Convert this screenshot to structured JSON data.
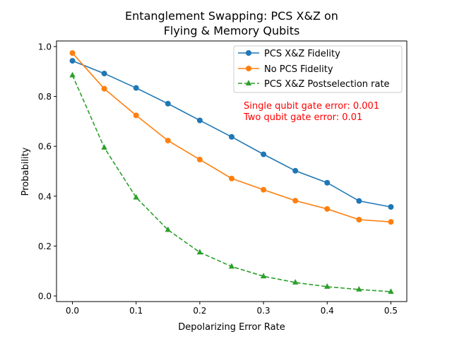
{
  "chart_data": {
    "type": "line",
    "title_lines": [
      "Entanglement Swapping: PCS X&Z on",
      "Flying & Memory Qubits"
    ],
    "xlabel": "Depolarizing Error Rate",
    "ylabel": "Probability",
    "xlim": [
      -0.025,
      0.525
    ],
    "ylim": [
      -0.0225,
      1.0225
    ],
    "x_ticks": [
      0.0,
      0.1,
      0.2,
      0.3,
      0.4,
      0.5
    ],
    "x_tick_labels": [
      "0.0",
      "0.1",
      "0.2",
      "0.3",
      "0.4",
      "0.5"
    ],
    "y_ticks": [
      0.0,
      0.2,
      0.4,
      0.6,
      0.8,
      1.0
    ],
    "y_tick_labels": [
      "0.0",
      "0.2",
      "0.4",
      "0.6",
      "0.8",
      "1.0"
    ],
    "grid": false,
    "legend_position": "top-right",
    "x": [
      0.0,
      0.05,
      0.1,
      0.15,
      0.2,
      0.25,
      0.3,
      0.35,
      0.4,
      0.45,
      0.5
    ],
    "series": [
      {
        "name": "PCS X&Z Fidelity",
        "color": "#1f77b4",
        "line_style": "solid",
        "marker": "circle",
        "values": [
          0.943,
          0.892,
          0.834,
          0.771,
          0.704,
          0.638,
          0.568,
          0.502,
          0.454,
          0.381,
          0.357
        ]
      },
      {
        "name": "No PCS Fidelity",
        "color": "#ff7f0e",
        "line_style": "solid",
        "marker": "circle",
        "values": [
          0.974,
          0.831,
          0.724,
          0.623,
          0.547,
          0.471,
          0.426,
          0.382,
          0.349,
          0.306,
          0.297
        ]
      },
      {
        "name": "PCS X&Z Postselection rate",
        "color": "#2ca02c",
        "line_style": "dashed",
        "marker": "triangle",
        "values": [
          0.885,
          0.595,
          0.395,
          0.265,
          0.175,
          0.118,
          0.079,
          0.054,
          0.037,
          0.026,
          0.017
        ]
      }
    ],
    "annotations": [
      {
        "text": "Single qubit gate error: 0.001",
        "color": "#ff0000"
      },
      {
        "text": "Two qubit gate error: 0.01",
        "color": "#ff0000"
      }
    ]
  }
}
